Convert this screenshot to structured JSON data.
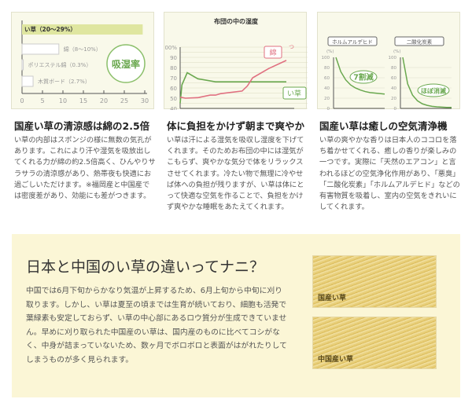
{
  "panels": [
    {
      "heading": "国産い草の清涼感は綿の2.5倍",
      "body": "い草の内部はスポンジの様に無数の気孔があります。これにより汗や湿気を吸放出してくれる力が綿の約2.5倍高く、ひんやりサラサラの清涼感があり、熱帯夜も快適にお過ごしいただけます。※福岡産と中国産では密度差があり、効能にも差がつきます。"
    },
    {
      "heading": "体に負担をかけず朝まで爽やか",
      "body": "い草は汗による湿気を吸収し湿度を下げてくれます。そのためお布団の中には湿気がこもらず、爽やかな気分で体をリラックスさせてくれます。冷たい物で無理に冷やせば体への負担が残りますが、い草は体にとって快適な空気を作ることで、負担をかけず爽やかな睡眠をあたえてくれます。"
    },
    {
      "heading": "国産い草は癒しの空気清浄機",
      "body": "い草の爽やかな香りは日本人のココロを落ち着かせてくれる、癒しの香りが楽しみの一つです。実際に「天然のエアコン」と言われるほどの空気浄化作用があり、「悪臭」「二酸化炭素」「ホルムアルデヒド」などの有害物質を吸着し、室内の空気をきれいにしてくれます。"
    }
  ],
  "bottom": {
    "title": "日本と中国のい草の違いってナニ？",
    "body": "中国では6月下旬からかなり気温が上昇するため、6月上旬から中旬に刈り取ります。しかし、い草は夏至の頃までは生育が続いており、細胞も活発で葉緑素も安定しておらず、い草の中心部にあるロウ質分が生成できていません。早めに刈り取られた中国産のい草は、国内産のものに比べてコシがなく、中身が詰まっていないため、数ヶ月でボロボロと表面がはがれたりしてしまうものが多く見られます。",
    "images": [
      {
        "label": "国産い草"
      },
      {
        "label": "中国産い草"
      }
    ]
  },
  "chart_data": [
    {
      "type": "bar",
      "orientation": "horizontal",
      "badge": "吸湿率",
      "xlim": [
        0,
        30
      ],
      "xticks": [
        "0",
        "5",
        "10",
        "15",
        "20",
        "25",
        "30"
      ],
      "bars": [
        {
          "label": "い草（20〜29%）",
          "range": [
            20,
            29
          ],
          "color": "#dfe6a0"
        },
        {
          "label": "綿（8〜10%）",
          "range": [
            8,
            10
          ],
          "color": "#ffffff"
        },
        {
          "label": "ポリエステル綿（0.3%）",
          "value": 0.3,
          "color": "#ffffff"
        },
        {
          "label": "木質ボード（2.7%）",
          "value": 2.7,
          "color": "#ffffff"
        }
      ]
    },
    {
      "type": "line",
      "title": "布団の中の湿度",
      "xlim": [
        0,
        60
      ],
      "ylim": [
        40,
        100
      ],
      "xticks": [
        "0",
        "10",
        "20",
        "30",
        "40",
        "50",
        "60分"
      ],
      "yticks": [
        "40",
        "50",
        "60",
        "70",
        "80",
        "90",
        "100%"
      ],
      "grid": true,
      "series": [
        {
          "name": "い草",
          "color": "#6aa84f",
          "x": [
            0,
            1,
            4,
            10,
            20,
            30,
            40,
            50,
            60
          ],
          "y": [
            45,
            63,
            75,
            69,
            66,
            66,
            66,
            66,
            66
          ]
        },
        {
          "name": "綿",
          "color": "#e07080",
          "x": [
            0,
            3,
            10,
            17,
            20,
            23,
            35,
            38,
            41,
            50,
            60
          ],
          "y": [
            51,
            50,
            50.5,
            53,
            53,
            54.5,
            57,
            62,
            70,
            79,
            87
          ]
        }
      ],
      "annotation": "つ"
    },
    {
      "type": "line",
      "ylabel": "(%)",
      "ylim": [
        0,
        100
      ],
      "yticks": [
        "0",
        "20",
        "40",
        "60",
        "80",
        "100"
      ],
      "panels": [
        {
          "title": "ホルムアルデヒド",
          "callout": "7割減",
          "color": "#6aa84f",
          "x": [
            0,
            1,
            2,
            3,
            4,
            5,
            6,
            7,
            8,
            9,
            10
          ],
          "y": [
            100,
            72,
            56,
            46,
            40,
            36,
            33,
            31,
            30,
            29,
            28
          ]
        },
        {
          "title": "二酸化炭素",
          "callout": "ほぼ消滅",
          "color": "#6aa84f",
          "x": [
            0,
            1,
            2,
            3,
            4,
            5,
            6,
            7,
            8,
            9,
            10
          ],
          "y": [
            100,
            48,
            26,
            15,
            9,
            6,
            4,
            3,
            2.5,
            2,
            2
          ]
        }
      ]
    }
  ]
}
